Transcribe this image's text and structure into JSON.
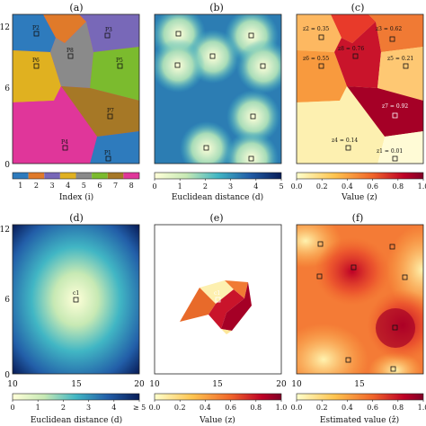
{
  "panels": {
    "a": {
      "label": "(a)",
      "cbar_label": "Index (i)",
      "cbar_ticks": [
        "1",
        "2",
        "3",
        "4",
        "5",
        "6",
        "7",
        "8"
      ],
      "site_labels": [
        "P2",
        "P3",
        "P6",
        "P8",
        "P5",
        "P7",
        "P4",
        "P1"
      ],
      "colors": [
        "#2e7bbd",
        "#e07a2a",
        "#7868b8",
        "#e0b120",
        "#8a8a8a",
        "#7bbb2e",
        "#a67826",
        "#e0369a"
      ]
    },
    "b": {
      "label": "(b)",
      "cbar_label": "Euclidean distance (d)",
      "cbar_ticks": [
        "0",
        "1",
        "2",
        "3",
        "4",
        "5"
      ]
    },
    "c": {
      "label": "(c)",
      "cbar_label": "Value (z)",
      "cbar_ticks": [
        "0.0",
        "0.2",
        "0.4",
        "0.6",
        "0.8",
        "1.0"
      ],
      "value_labels": [
        "z2 = 0.35",
        "z3 = 0.62",
        "z8 = 0.76",
        "z6 = 0.55",
        "z5 = 0.21",
        "z7 = 0.92",
        "z4 = 0.14",
        "z1 = 0.01"
      ]
    },
    "d": {
      "label": "(d)",
      "cbar_label": "Euclidean distance (d)",
      "cbar_ticks": [
        "0",
        "1",
        "2",
        "3",
        "4",
        "≥ 5"
      ],
      "center_label": "c1"
    },
    "e": {
      "label": "(e)",
      "cbar_label": "Value (z)",
      "cbar_ticks": [
        "0.0",
        "0.2",
        "0.4",
        "0.6",
        "0.8",
        "1.0"
      ],
      "center_label": "c1"
    },
    "f": {
      "label": "(f)",
      "cbar_label": "Estimated value (ẑ)",
      "cbar_ticks": [
        "0.0",
        "0.2",
        "0.4",
        "0.6",
        "0.8",
        "1.0"
      ]
    }
  },
  "axes": {
    "y_ticks_top": [
      "12",
      "6",
      "0"
    ],
    "y_ticks_bottom": [
      "12",
      "6",
      "0"
    ],
    "x_ticks": [
      "10",
      "15",
      "20"
    ]
  }
}
